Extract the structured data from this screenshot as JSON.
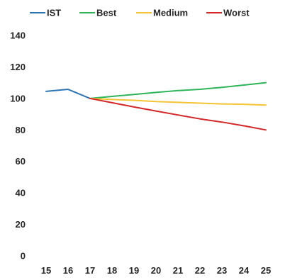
{
  "chart_data": {
    "type": "line",
    "x": [
      15,
      16,
      17,
      18,
      19,
      20,
      21,
      22,
      23,
      24,
      25
    ],
    "ylim": [
      0,
      140
    ],
    "yticks": [
      0,
      20,
      40,
      60,
      80,
      100,
      120,
      140
    ],
    "grid": false,
    "legend_position": "top",
    "series": [
      {
        "name": "IST",
        "color": "#2E75B6",
        "values": [
          104.5,
          105.8,
          100,
          null,
          null,
          null,
          null,
          null,
          null,
          null,
          null
        ]
      },
      {
        "name": "Best",
        "color": "#2FB45A",
        "values": [
          null,
          null,
          100,
          101.3,
          102.5,
          103.8,
          105,
          105.8,
          107,
          108.5,
          110
        ]
      },
      {
        "name": "Medium",
        "color": "#F5C333",
        "values": [
          null,
          null,
          100,
          99.3,
          98.8,
          98,
          97.5,
          97,
          96.5,
          96.3,
          95.8
        ]
      },
      {
        "name": "Worst",
        "color": "#D42728",
        "values": [
          null,
          null,
          100,
          97.3,
          94.6,
          92,
          89.5,
          87,
          85,
          82.6,
          80
        ]
      }
    ]
  }
}
